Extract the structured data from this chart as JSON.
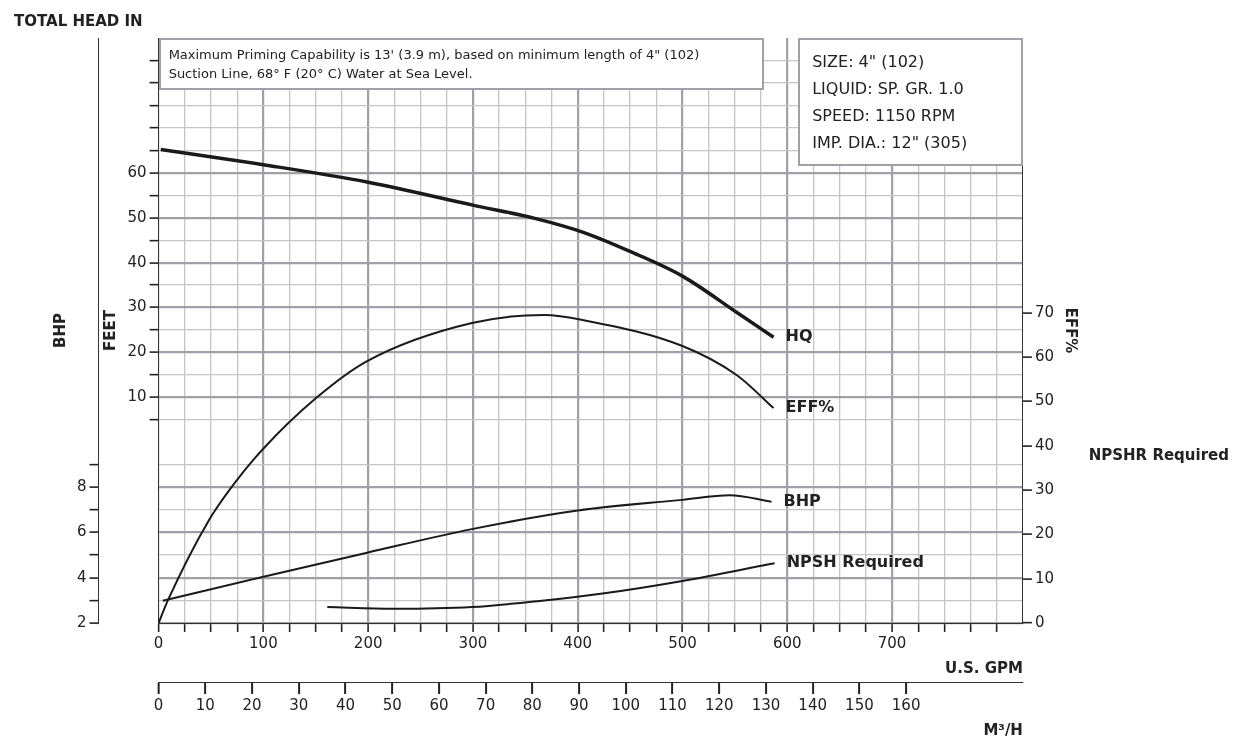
{
  "chart_data": {
    "type": "line",
    "xlabel": "U.S. GPM",
    "x2label": "M³/H",
    "ylabel": "FEET",
    "y2label": "EFF%",
    "y3label": "BHP",
    "annotations": [
      "TOTAL HEAD IN",
      "NPSHR Required",
      "Maximum Priming Capability is 13' (3.9 m), based on minimum length of 4\" (102)",
      "Suction Line, 68° F (20° C) Water at Sea Level.",
      "SIZE: 4\" (102)",
      "LIQUID: SP. GR. 1.0",
      "SPEED: 1150 RPM",
      "IMP. DIA.: 12\" (305)"
    ],
    "xlim": [
      0,
      825
    ],
    "xticks": [
      0,
      {
        "value": 25,
        "label": null
      },
      {
        "value": 50,
        "label": null
      },
      {
        "value": 75,
        "label": null
      },
      100,
      {
        "value": 125,
        "label": null
      },
      {
        "value": 150,
        "label": null
      },
      {
        "value": 175,
        "label": null
      },
      200,
      {
        "value": 225,
        "label": null
      },
      {
        "value": 250,
        "label": null
      },
      {
        "value": 275,
        "label": null
      },
      300,
      {
        "value": 325,
        "label": null
      },
      {
        "value": 350,
        "label": null
      },
      {
        "value": 375,
        "label": null
      },
      400,
      {
        "value": 425,
        "label": null
      },
      {
        "value": 450,
        "label": null
      },
      {
        "value": 475,
        "label": null
      },
      500,
      {
        "value": 525,
        "label": null
      },
      {
        "value": 550,
        "label": null
      },
      {
        "value": 575,
        "label": null
      },
      600,
      {
        "value": 625,
        "label": null
      },
      {
        "value": 650,
        "label": null
      },
      {
        "value": 675,
        "label": null
      },
      700,
      {
        "value": 725,
        "label": null
      },
      {
        "value": 750,
        "label": null
      },
      {
        "value": 775,
        "label": null
      },
      {
        "value": 800,
        "label": null
      }
    ],
    "x2lim": [
      0,
      185
    ],
    "x2ticks": [
      0,
      10,
      20,
      30,
      40,
      50,
      60,
      70,
      80,
      90,
      100,
      110,
      120,
      130,
      140,
      150,
      160
    ],
    "ylim": [
      -40.2,
      90
    ],
    "yticks": [
      {
        "value": 5,
        "label": null
      },
      10,
      {
        "value": 15,
        "label": null
      },
      20,
      {
        "value": 25,
        "label": null
      },
      30,
      {
        "value": 35,
        "label": null
      },
      40,
      {
        "value": 45,
        "label": null
      },
      50,
      {
        "value": 55,
        "label": null
      },
      60,
      {
        "value": 65,
        "label": null
      },
      {
        "value": 70,
        "label": null
      },
      {
        "value": 75,
        "label": null
      },
      {
        "value": 80,
        "label": null
      },
      {
        "value": 85,
        "label": null
      }
    ],
    "y2lim": [
      0,
      132
    ],
    "y2ticks": [
      0,
      10,
      20,
      30,
      40,
      50,
      60,
      70
    ],
    "y3lim": [
      2,
      27.8
    ],
    "y3ticks": [
      2,
      {
        "value": 3,
        "label": null
      },
      4,
      {
        "value": 5,
        "label": null
      },
      6,
      {
        "value": 7,
        "label": null
      },
      8,
      {
        "value": 9,
        "label": null
      }
    ],
    "grid": true,
    "legend": false,
    "marker": "none",
    "line_style": "solid",
    "series": [
      {
        "name": "HQ",
        "color": "#1a1a1a",
        "axis": "y",
        "x": [
          2,
          100,
          200,
          300,
          360,
          406,
          450,
          500,
          552,
          587
        ],
        "values": [
          65.2,
          61.8,
          57.9,
          52.8,
          49.8,
          46.7,
          42.5,
          37.0,
          28.9,
          23.4
        ]
      },
      {
        "name": "EFF%",
        "color": "#1a1a1a",
        "axis": "y2",
        "x": [
          0,
          9,
          48,
          71,
          99,
          150,
          199,
          299,
          368,
          406,
          500,
          552,
          587
        ],
        "values": [
          0,
          5.2,
          23.2,
          31.1,
          39.1,
          50.7,
          59.1,
          67.7,
          69.5,
          68.3,
          62.5,
          55.9,
          48.5
        ]
      },
      {
        "name": "BHP",
        "color": "#1a1a1a",
        "axis": "y3",
        "x": [
          4,
          99,
          199,
          299,
          400,
          500,
          545,
          585
        ],
        "values": [
          2.98,
          4.03,
          5.1,
          6.14,
          6.96,
          7.43,
          7.63,
          7.35
        ]
      },
      {
        "name": "NPSH Required",
        "color": "#1a1a1a",
        "axis": "y2",
        "x": [
          161,
          224,
          299,
          368,
          422,
          500,
          588
        ],
        "values": [
          3.6,
          3.2,
          3.6,
          5.1,
          6.6,
          9.5,
          13.5
        ]
      }
    ]
  }
}
